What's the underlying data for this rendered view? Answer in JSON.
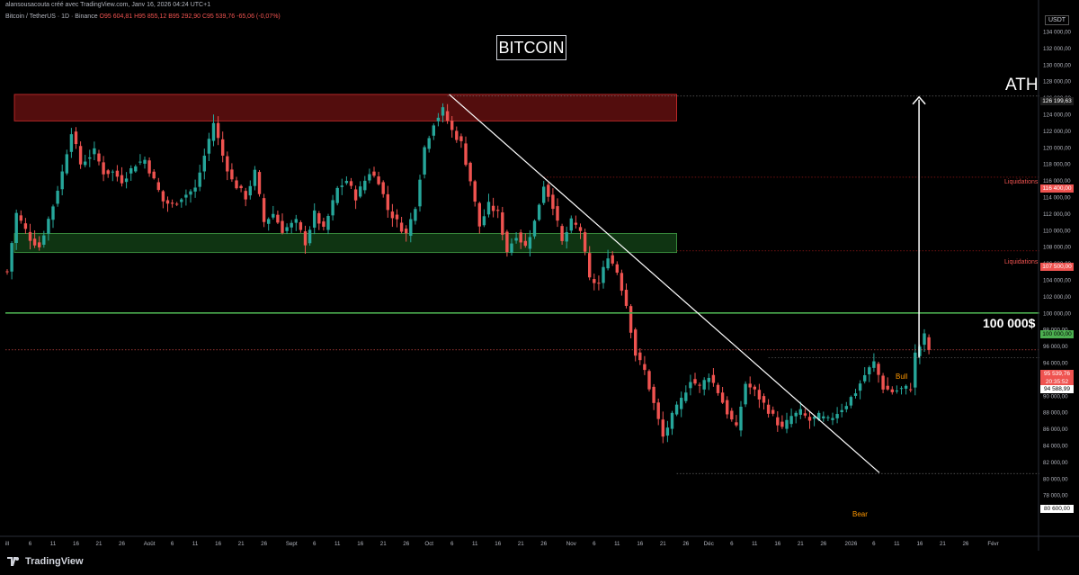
{
  "header": {
    "author_line": "alansousacouta créé avec TradingView.com, Janv 16, 2026 04:24 UTC+1",
    "symbol": "Bitcoin / TetherUS · 1D · Binance",
    "ohlc": "O95 604,81  H95 855,12  B95 292,90  C95 539,76  -65,06 (-0,07%)"
  },
  "annotations": {
    "title": "BITCOIN",
    "ath": "ATH",
    "level_100k": "100 000$",
    "liquidations_1": "Liquidations",
    "liquidations_2": "Liquidations",
    "bull": "Bull",
    "bear": "Bear"
  },
  "price_labels": {
    "currency": "USDT",
    "ath_price": "126 199,63",
    "liq1_price": "116 400,00",
    "liq2_price": "107 500,00",
    "level_100k_price": "100 000,00",
    "current_price": "95 539,76",
    "countdown": "20:35:52",
    "bull_price": "94 588,99",
    "bear_price": "80 600,00"
  },
  "colors": {
    "up": "#26a69a",
    "down": "#ef5350",
    "green_line": "#4caf50",
    "resistance_zone": "#b71c1c",
    "support_zone": "#1b5e20",
    "bull_bear_text": "#ff9800"
  },
  "footer": {
    "logo_text": "TradingView"
  },
  "chart_data": {
    "type": "candlestick",
    "ylim": [
      78000,
      136000
    ],
    "y_ticks": [
      78000,
      80000,
      82000,
      84000,
      86000,
      88000,
      90000,
      92000,
      94000,
      96000,
      98000,
      100000,
      102000,
      104000,
      106000,
      108000,
      110000,
      112000,
      114000,
      116000,
      118000,
      120000,
      122000,
      124000,
      126000,
      128000,
      130000,
      132000,
      134000
    ],
    "y_tick_labels": [
      "78 000,00",
      "80 000,00",
      "82 000,00",
      "84 000,00",
      "86 000,00",
      "88 000,00",
      "90 000,00",
      "92 000,00",
      "94 000,00",
      "96 000,00",
      "98 000,00",
      "100 000,00",
      "102 000,00",
      "104 000,00",
      "106 000,00",
      "108 000,00",
      "110 000,00",
      "112 000,00",
      "114 000,00",
      "116 000,00",
      "118 000,00",
      "120 000,00",
      "122 000,00",
      "124 000,00",
      "126 000,00",
      "128 000,00",
      "130 000,00",
      "132 000,00",
      "134 000,00"
    ],
    "x_tick_labels": [
      "ill",
      "6",
      "11",
      "16",
      "21",
      "26",
      "Août",
      "6",
      "11",
      "16",
      "21",
      "26",
      "Sept",
      "6",
      "11",
      "16",
      "21",
      "26",
      "Oct",
      "6",
      "11",
      "16",
      "21",
      "26",
      "Nov",
      "6",
      "11",
      "16",
      "21",
      "26",
      "Déc",
      "6",
      "11",
      "16",
      "21",
      "26",
      "2026",
      "6",
      "11",
      "16",
      "21",
      "26",
      "Févr"
    ],
    "x_tick_days": [
      0,
      5,
      10,
      15,
      20,
      25,
      31,
      36,
      41,
      46,
      51,
      56,
      62,
      67,
      72,
      77,
      82,
      87,
      92,
      97,
      102,
      107,
      112,
      117,
      123,
      128,
      133,
      138,
      143,
      148,
      153,
      158,
      163,
      168,
      173,
      178,
      184,
      189,
      194,
      199,
      204,
      209,
      215
    ],
    "candle_anchors": [
      [
        0,
        105000
      ],
      [
        2,
        112000
      ],
      [
        5,
        109000
      ],
      [
        7,
        108000
      ],
      [
        10,
        113000
      ],
      [
        12,
        117000
      ],
      [
        14,
        122000
      ],
      [
        16,
        118000
      ],
      [
        19,
        119500
      ],
      [
        21,
        117000
      ],
      [
        23,
        117000
      ],
      [
        25,
        116000
      ],
      [
        28,
        118000
      ],
      [
        30,
        118500
      ],
      [
        32,
        116000
      ],
      [
        34,
        113500
      ],
      [
        36,
        113000
      ],
      [
        38,
        114000
      ],
      [
        41,
        115000
      ],
      [
        43,
        119000
      ],
      [
        45,
        123000
      ],
      [
        47,
        119000
      ],
      [
        49,
        116000
      ],
      [
        52,
        114000
      ],
      [
        54,
        117000
      ],
      [
        56,
        111000
      ],
      [
        58,
        112000
      ],
      [
        60,
        110000
      ],
      [
        63,
        111000
      ],
      [
        65,
        108500
      ],
      [
        67,
        112000
      ],
      [
        69,
        110000
      ],
      [
        72,
        115000
      ],
      [
        74,
        116000
      ],
      [
        76,
        114000
      ],
      [
        79,
        117000
      ],
      [
        81,
        116000
      ],
      [
        83,
        112500
      ],
      [
        85,
        111000
      ],
      [
        87,
        109500
      ],
      [
        89,
        113000
      ],
      [
        91,
        120000
      ],
      [
        93,
        123000
      ],
      [
        95,
        124500
      ],
      [
        97,
        122000
      ],
      [
        99,
        120500
      ],
      [
        101,
        116000
      ],
      [
        103,
        110500
      ],
      [
        105,
        113000
      ],
      [
        107,
        112000
      ],
      [
        109,
        107500
      ],
      [
        111,
        109500
      ],
      [
        113,
        108000
      ],
      [
        115,
        111000
      ],
      [
        117,
        115500
      ],
      [
        119,
        113000
      ],
      [
        121,
        108500
      ],
      [
        123,
        111000
      ],
      [
        125,
        110000
      ],
      [
        127,
        104000
      ],
      [
        129,
        103500
      ],
      [
        131,
        107000
      ],
      [
        133,
        105000
      ],
      [
        135,
        101000
      ],
      [
        137,
        95000
      ],
      [
        139,
        93000
      ],
      [
        141,
        89000
      ],
      [
        143,
        85000
      ],
      [
        145,
        87500
      ],
      [
        147,
        89500
      ],
      [
        149,
        92000
      ],
      [
        151,
        91000
      ],
      [
        153,
        92500
      ],
      [
        155,
        90500
      ],
      [
        157,
        88000
      ],
      [
        159,
        86000
      ],
      [
        161,
        91500
      ],
      [
        163,
        90500
      ],
      [
        165,
        89000
      ],
      [
        167,
        87500
      ],
      [
        169,
        86000
      ],
      [
        171,
        87500
      ],
      [
        173,
        88000
      ],
      [
        175,
        87000
      ],
      [
        177,
        87500
      ],
      [
        179,
        87000
      ],
      [
        181,
        88000
      ],
      [
        183,
        89000
      ],
      [
        185,
        90500
      ],
      [
        187,
        92500
      ],
      [
        189,
        94000
      ],
      [
        191,
        91000
      ],
      [
        193,
        90500
      ],
      [
        195,
        90800
      ],
      [
        197,
        91000
      ],
      [
        198,
        95000
      ],
      [
        199,
        96000
      ],
      [
        200,
        97200
      ],
      [
        201,
        95540
      ]
    ],
    "drawings": {
      "resistance_zone": {
        "from_day": 0,
        "to_day": 146,
        "low": 123200,
        "high": 126400
      },
      "support_zone": {
        "from_day": 0,
        "to_day": 146,
        "low": 107300,
        "high": 109600
      },
      "horizontal_line": {
        "price": 100000
      },
      "trendline": {
        "start": {
          "day": 96,
          "price": 126400
        },
        "end": {
          "day": 190,
          "price": 80700
        }
      },
      "ath_arrow": {
        "day": 191,
        "from_price": 94600,
        "to_price": 126200
      },
      "ath_level": 126199.63,
      "liquidation_levels": [
        116400,
        107500
      ],
      "bull_level": 94588.99,
      "bear_level": 80600
    }
  }
}
